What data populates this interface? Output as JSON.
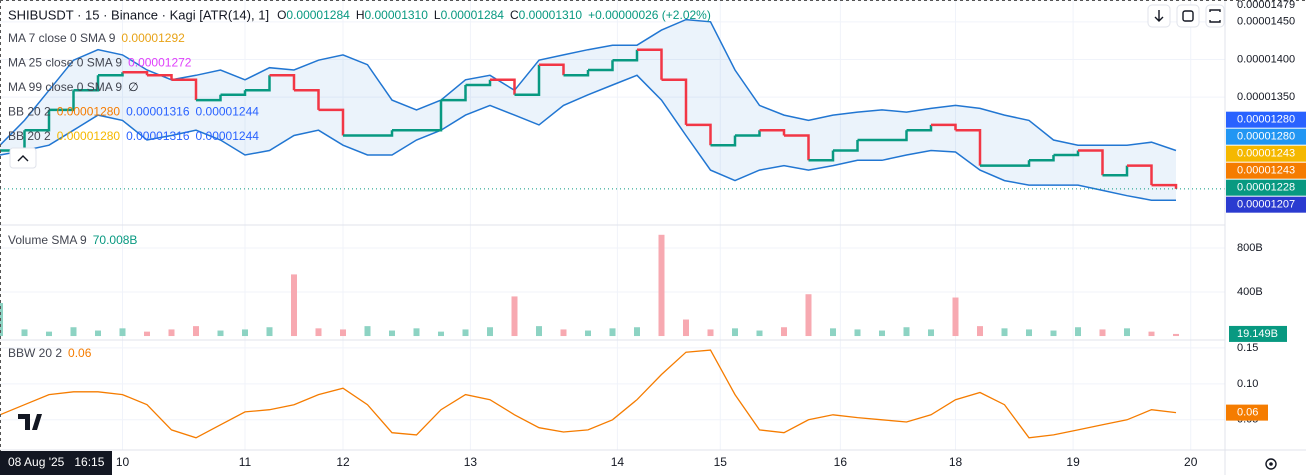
{
  "chart_data": [
    {
      "type": "kagi",
      "title": "SHIBUSDT · 15 · Binance · Kagi [ATR(14), 1]",
      "ohlc": [
        {
          "key": "O",
          "value": "0.00001284"
        },
        {
          "key": "H",
          "value": "0.00001310"
        },
        {
          "key": "L",
          "value": "0.00001284"
        },
        {
          "key": "C",
          "value": "0.00001310"
        }
      ],
      "change": "+0.00000026 (+2.02%)",
      "indicators": [
        {
          "name": "MA 7 close 0 SMA 9",
          "items": [
            {
              "text": "0.00001292",
              "color": "#e8a317"
            }
          ]
        },
        {
          "name": "MA 25 close 0 SMA 9",
          "items": [
            {
              "text": "0.00001272",
              "color": "#e040fb"
            }
          ]
        },
        {
          "name": "MA 99 close 0 SMA 9",
          "items": [
            {
              "text": "∅",
              "color": "#131722"
            }
          ]
        },
        {
          "name": "BB 20 2",
          "items": [
            {
              "text": "0.00001280",
              "color": "#f57c00"
            },
            {
              "text": "0.00001316",
              "color": "#2962ff"
            },
            {
              "text": "0.00001244",
              "color": "#2962ff"
            }
          ]
        },
        {
          "name": "BB 20 2",
          "items": [
            {
              "text": "0.00001280",
              "color": "#f5b800"
            },
            {
              "text": "0.00001316",
              "color": "#2962ff"
            },
            {
              "text": "0.00001244",
              "color": "#2962ff"
            }
          ]
        }
      ],
      "x": [
        0,
        1,
        2,
        3,
        4,
        5,
        6,
        7,
        8,
        9,
        10,
        11,
        12,
        13,
        14,
        15,
        16,
        17,
        18,
        19,
        20,
        21,
        22,
        23,
        24,
        25,
        26,
        27,
        28,
        29,
        30,
        31,
        32,
        33,
        34,
        35,
        36,
        37,
        38,
        39,
        40,
        41,
        42,
        43,
        44,
        45,
        46,
        47,
        48
      ],
      "values": [
        1.279e-05,
        1.306e-05,
        1.333e-05,
        1.359e-05,
        1.379e-05,
        1.383e-05,
        1.379e-05,
        1.373e-05,
        1.346e-05,
        1.353e-05,
        1.359e-05,
        1.379e-05,
        1.359e-05,
        1.333e-05,
        1.299e-05,
        1.299e-05,
        1.306e-05,
        1.306e-05,
        1.346e-05,
        1.366e-05,
        1.373e-05,
        1.353e-05,
        1.393e-05,
        1.379e-05,
        1.386e-05,
        1.399e-05,
        1.413e-05,
        1.373e-05,
        1.313e-05,
        1.286e-05,
        1.299e-05,
        1.306e-05,
        1.299e-05,
        1.266e-05,
        1.279e-05,
        1.293e-05,
        1.293e-05,
        1.306e-05,
        1.313e-05,
        1.306e-05,
        1.259e-05,
        1.259e-05,
        1.266e-05,
        1.273e-05,
        1.279e-05,
        1.246e-05,
        1.259e-05,
        1.233e-05,
        1.228e-05
      ],
      "up_color": "#089981",
      "down_color": "#f23645",
      "bands": {
        "color": "#2176d2",
        "upper": [
          1.286e-05,
          1.319e-05,
          1.359e-05,
          1.399e-05,
          1.413e-05,
          1.406e-05,
          1.386e-05,
          1.373e-05,
          1.379e-05,
          1.386e-05,
          1.373e-05,
          1.389e-05,
          1.386e-05,
          1.399e-05,
          1.406e-05,
          1.393e-05,
          1.346e-05,
          1.333e-05,
          1.346e-05,
          1.373e-05,
          1.379e-05,
          1.359e-05,
          1.399e-05,
          1.406e-05,
          1.413e-05,
          1.419e-05,
          1.419e-05,
          1.439e-05,
          1.453e-05,
          1.45e-05,
          1.386e-05,
          1.339e-05,
          1.326e-05,
          1.319e-05,
          1.326e-05,
          1.33e-05,
          1.333e-05,
          1.33e-05,
          1.335e-05,
          1.339e-05,
          1.335e-05,
          1.326e-05,
          1.319e-05,
          1.293e-05,
          1.286e-05,
          1.286e-05,
          1.286e-05,
          1.29e-05,
          1.279e-05
        ],
        "lower": [
          1.273e-05,
          1.279e-05,
          1.286e-05,
          1.306e-05,
          1.326e-05,
          1.319e-05,
          1.293e-05,
          1.299e-05,
          1.306e-05,
          1.293e-05,
          1.273e-05,
          1.279e-05,
          1.299e-05,
          1.306e-05,
          1.286e-05,
          1.273e-05,
          1.273e-05,
          1.293e-05,
          1.306e-05,
          1.326e-05,
          1.339e-05,
          1.326e-05,
          1.313e-05,
          1.339e-05,
          1.353e-05,
          1.366e-05,
          1.379e-05,
          1.346e-05,
          1.299e-05,
          1.253e-05,
          1.239e-05,
          1.253e-05,
          1.259e-05,
          1.253e-05,
          1.259e-05,
          1.266e-05,
          1.266e-05,
          1.273e-05,
          1.279e-05,
          1.277e-05,
          1.253e-05,
          1.239e-05,
          1.233e-05,
          1.233e-05,
          1.233e-05,
          1.226e-05,
          1.219e-05,
          1.213e-05,
          1.213e-05
        ]
      },
      "xlim": [
        0,
        50
      ],
      "xticks": [
        {
          "value": 5,
          "label": "10"
        },
        {
          "value": 10,
          "label": "11"
        },
        {
          "value": 14,
          "label": "12"
        },
        {
          "value": 19.2,
          "label": "13"
        },
        {
          "value": 25.2,
          "label": "14"
        },
        {
          "value": 29.4,
          "label": "15"
        },
        {
          "value": 34.3,
          "label": "16"
        },
        {
          "value": 39,
          "label": "18"
        },
        {
          "value": 43.8,
          "label": "19"
        },
        {
          "value": 48.6,
          "label": "20"
        }
      ],
      "ylim": [
        1.18e-05,
        1.479e-05
      ],
      "yticks": [
        {
          "value": 1.479e-05,
          "label": "0.00001479"
        },
        {
          "value": 1.45e-05,
          "label": "0.00001450"
        },
        {
          "value": 1.4e-05,
          "label": "0.00001400"
        },
        {
          "value": 1.35e-05,
          "label": "0.00001350"
        }
      ],
      "badges": [
        {
          "value": 1.28e-05,
          "label": "0.00001280",
          "color": "#2196f3"
        },
        {
          "value": 1.28e-05,
          "label": "0.00001280",
          "color": "#2962ff"
        },
        {
          "value": 1.243e-05,
          "label": "0.00001243",
          "color": "#f57c00"
        },
        {
          "value": 1.243e-05,
          "label": "0.00001243",
          "color": "#f5b800"
        },
        {
          "value": 1.228e-05,
          "label": "0.00001228",
          "color": "#089981"
        },
        {
          "value": 1.207e-05,
          "label": "0.00001207",
          "color": "#2a3bd0"
        }
      ],
      "time_label": "08 Aug '25",
      "time": "16:15"
    },
    {
      "type": "bar",
      "title": "Volume SMA 9",
      "legend_value": "70.008B",
      "legend_color": "#089981",
      "x": [
        0,
        1,
        2,
        3,
        4,
        5,
        6,
        7,
        8,
        9,
        10,
        11,
        12,
        13,
        14,
        15,
        16,
        17,
        18,
        19,
        20,
        21,
        22,
        23,
        24,
        25,
        26,
        27,
        28,
        29,
        30,
        31,
        32,
        33,
        34,
        35,
        36,
        37,
        38,
        39,
        40,
        41,
        42,
        43,
        44,
        45,
        46,
        47,
        48
      ],
      "values": [
        300,
        60,
        40,
        80,
        50,
        70,
        40,
        60,
        90,
        50,
        60,
        80,
        560,
        70,
        60,
        90,
        50,
        70,
        40,
        60,
        80,
        360,
        90,
        60,
        50,
        70,
        80,
        920,
        150,
        60,
        70,
        50,
        80,
        380,
        70,
        60,
        50,
        80,
        60,
        350,
        90,
        70,
        60,
        50,
        80,
        60,
        70,
        40,
        19.149
      ],
      "last_label": "19.149B",
      "up_color": "#8dd3c3",
      "down_color": "#f7a9b1",
      "xlim": [
        0,
        50
      ],
      "ylim": [
        -36,
        1009
      ],
      "yticks": [
        {
          "value": 800,
          "label": "800B"
        },
        {
          "value": 400,
          "label": "400B"
        }
      ]
    },
    {
      "type": "line",
      "title": "BBW 20 2",
      "legend_value": "0.06",
      "color": "#f57c00",
      "x": [
        0,
        1,
        2,
        3,
        4,
        5,
        6,
        7,
        8,
        9,
        10,
        11,
        12,
        13,
        14,
        15,
        16,
        17,
        18,
        19,
        20,
        21,
        22,
        23,
        24,
        25,
        26,
        27,
        28,
        29,
        30,
        31,
        32,
        33,
        34,
        35,
        36,
        37,
        38,
        39,
        40,
        41,
        42,
        43,
        44,
        45,
        46,
        47,
        48
      ],
      "values": [
        0.057,
        0.071,
        0.085,
        0.089,
        0.089,
        0.085,
        0.071,
        0.036,
        0.025,
        0.043,
        0.061,
        0.064,
        0.071,
        0.085,
        0.094,
        0.071,
        0.032,
        0.029,
        0.064,
        0.085,
        0.078,
        0.057,
        0.039,
        0.033,
        0.036,
        0.05,
        0.078,
        0.113,
        0.144,
        0.147,
        0.085,
        0.036,
        0.032,
        0.05,
        0.057,
        0.053,
        0.05,
        0.047,
        0.057,
        0.078,
        0.088,
        0.071,
        0.025,
        0.029,
        0.036,
        0.043,
        0.05,
        0.064,
        0.06
      ],
      "xlim": [
        0,
        50
      ],
      "ylim": [
        0.008,
        0.161
      ],
      "yticks": [
        0.15,
        {
          "value": 0.1,
          "label": "0.10"
        },
        {
          "value": 0.05,
          "label": "0.05"
        }
      ]
    }
  ]
}
